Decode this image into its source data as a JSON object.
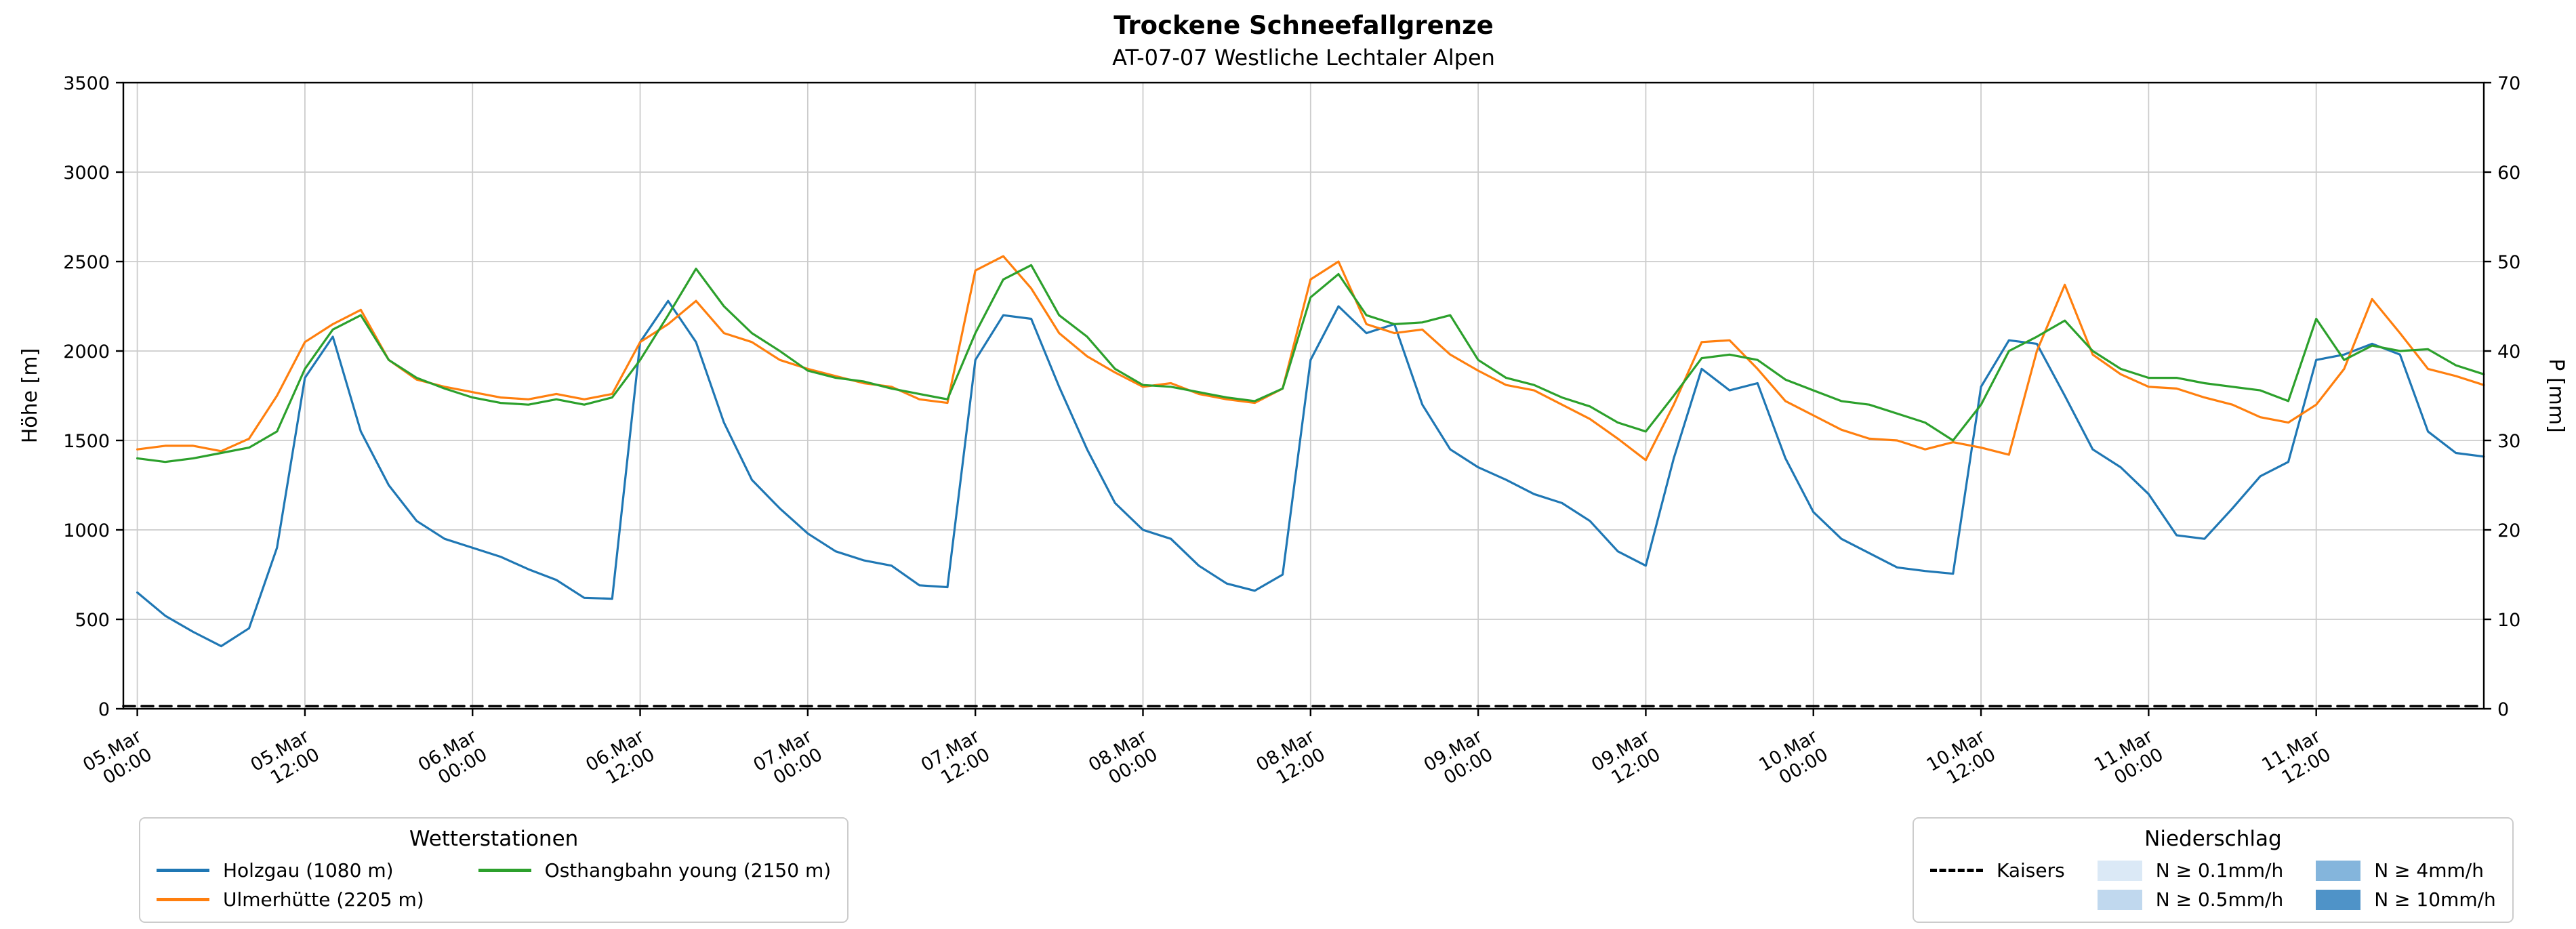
{
  "page": {
    "title": "Trockene Schneefallgrenze",
    "subtitle": "AT-07-07 Westliche Lechtaler Alpen"
  },
  "legend_stations": {
    "title": "Wetterstationen",
    "entries": [
      {
        "label": "Holzgau (1080 m)",
        "color": "#1f77b4"
      },
      {
        "label": "Ulmerhütte (2205 m)",
        "color": "#ff7f0e"
      },
      {
        "label": "Osthangbahn young (2150 m)",
        "color": "#2ca02c"
      }
    ]
  },
  "legend_precip": {
    "title": "Niederschlag",
    "line_entry": {
      "label": "Kaisers",
      "color": "#000000",
      "style": "dashed"
    },
    "patch_entries": [
      {
        "label": "N ≥ 0.1mm/h",
        "color": "#dbe9f6"
      },
      {
        "label": "N ≥ 0.5mm/h",
        "color": "#c0d8ee"
      },
      {
        "label": "N ≥ 4mm/h",
        "color": "#84b5dc"
      },
      {
        "label": "N ≥ 10mm/h",
        "color": "#4f93c8"
      }
    ]
  },
  "chart_data": {
    "type": "line",
    "title": "Trockene Schneefallgrenze",
    "subtitle": "AT-07-07 Westliche Lechtaler Alpen",
    "x_unit": "hours since 05.Mar 00:00",
    "x_range": [
      -1,
      168
    ],
    "ylabel_left": "Höhe [m]",
    "ylabel_right": "P [mm]",
    "ylim_left": [
      0,
      3500
    ],
    "ylim_right": [
      0,
      70
    ],
    "y_left_ticks": [
      0,
      500,
      1000,
      1500,
      2000,
      2500,
      3000,
      3500
    ],
    "y_right_ticks": [
      0,
      10,
      20,
      30,
      40,
      50,
      60,
      70
    ],
    "grid": true,
    "x_ticks": [
      {
        "t": 0,
        "line1": "05.Mar",
        "line2": "00:00"
      },
      {
        "t": 12,
        "line1": "05.Mar",
        "line2": "12:00"
      },
      {
        "t": 24,
        "line1": "06.Mar",
        "line2": "00:00"
      },
      {
        "t": 36,
        "line1": "06.Mar",
        "line2": "12:00"
      },
      {
        "t": 48,
        "line1": "07.Mar",
        "line2": "00:00"
      },
      {
        "t": 60,
        "line1": "07.Mar",
        "line2": "12:00"
      },
      {
        "t": 72,
        "line1": "08.Mar",
        "line2": "00:00"
      },
      {
        "t": 84,
        "line1": "08.Mar",
        "line2": "12:00"
      },
      {
        "t": 96,
        "line1": "09.Mar",
        "line2": "00:00"
      },
      {
        "t": 108,
        "line1": "09.Mar",
        "line2": "12:00"
      },
      {
        "t": 120,
        "line1": "10.Mar",
        "line2": "00:00"
      },
      {
        "t": 132,
        "line1": "10.Mar",
        "line2": "12:00"
      },
      {
        "t": 144,
        "line1": "11.Mar",
        "line2": "00:00"
      },
      {
        "t": 156,
        "line1": "11.Mar",
        "line2": "12:00"
      }
    ],
    "series": [
      {
        "name": "Holzgau (1080 m)",
        "color": "#1f77b4",
        "axis": "left",
        "x_start": 0,
        "x_step": 2,
        "values": [
          650,
          520,
          430,
          350,
          450,
          900,
          1850,
          2080,
          1550,
          1250,
          1050,
          950,
          900,
          850,
          780,
          720,
          620,
          615,
          2050,
          2280,
          2050,
          1600,
          1280,
          1120,
          980,
          880,
          830,
          800,
          690,
          680,
          1950,
          2200,
          2180,
          1800,
          1450,
          1150,
          1000,
          950,
          800,
          700,
          660,
          750,
          1950,
          2250,
          2100,
          2150,
          1700,
          1450,
          1350,
          1280,
          1200,
          1150,
          1050,
          880,
          800,
          1400,
          1900,
          1780,
          1820,
          1400,
          1100,
          950,
          870,
          790,
          770,
          755,
          1800,
          2060,
          2040,
          1750,
          1450,
          1350,
          1200,
          970,
          950,
          1120,
          1300,
          1380,
          1950,
          1980,
          2040,
          1980,
          1550,
          1430,
          1410
        ]
      },
      {
        "name": "Ulmerhütte (2205 m)",
        "color": "#ff7f0e",
        "axis": "left",
        "x_start": 0,
        "x_step": 2,
        "values": [
          1450,
          1470,
          1470,
          1440,
          1510,
          1750,
          2050,
          2150,
          2230,
          1950,
          1840,
          1800,
          1770,
          1740,
          1730,
          1760,
          1730,
          1760,
          2050,
          2150,
          2280,
          2100,
          2050,
          1950,
          1900,
          1860,
          1820,
          1800,
          1730,
          1710,
          2450,
          2530,
          2350,
          2100,
          1970,
          1880,
          1800,
          1820,
          1760,
          1730,
          1710,
          1790,
          2400,
          2500,
          2150,
          2100,
          2120,
          1980,
          1890,
          1810,
          1780,
          1700,
          1620,
          1510,
          1390,
          1700,
          2050,
          2060,
          1900,
          1720,
          1640,
          1560,
          1510,
          1500,
          1450,
          1490,
          1460,
          1420,
          2000,
          2370,
          1980,
          1870,
          1800,
          1790,
          1740,
          1700,
          1630,
          1600,
          1700,
          1900,
          2290,
          2100,
          1900,
          1860,
          1810
        ]
      },
      {
        "name": "Osthangbahn young (2150 m)",
        "color": "#2ca02c",
        "axis": "left",
        "x_start": 0,
        "x_step": 2,
        "values": [
          1400,
          1380,
          1400,
          1430,
          1460,
          1550,
          1900,
          2120,
          2200,
          1950,
          1850,
          1790,
          1740,
          1710,
          1700,
          1730,
          1700,
          1740,
          1950,
          2200,
          2460,
          2250,
          2100,
          2000,
          1890,
          1850,
          1830,
          1790,
          1760,
          1730,
          2100,
          2400,
          2480,
          2200,
          2080,
          1900,
          1810,
          1800,
          1770,
          1740,
          1720,
          1790,
          2300,
          2430,
          2200,
          2150,
          2160,
          2200,
          1950,
          1850,
          1810,
          1740,
          1690,
          1600,
          1550,
          1750,
          1960,
          1980,
          1950,
          1840,
          1780,
          1720,
          1700,
          1650,
          1600,
          1500,
          1700,
          2000,
          2080,
          2170,
          2000,
          1900,
          1850,
          1850,
          1820,
          1800,
          1780,
          1720,
          2180,
          1950,
          2030,
          2000,
          2010,
          1920,
          1870
        ]
      },
      {
        "name": "Kaisers",
        "color": "#000000",
        "axis": "left",
        "dashed": true,
        "x": [
          -1,
          168
        ],
        "values": [
          15,
          15
        ]
      }
    ]
  }
}
